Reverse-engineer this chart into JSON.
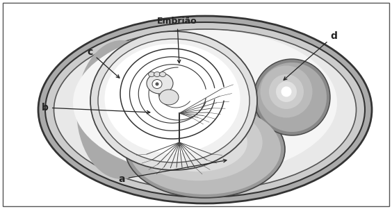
{
  "labels": {
    "embriao": "Embrião",
    "a": "a",
    "b": "b",
    "c": "c",
    "d": "d"
  },
  "bg_color": "#ffffff"
}
